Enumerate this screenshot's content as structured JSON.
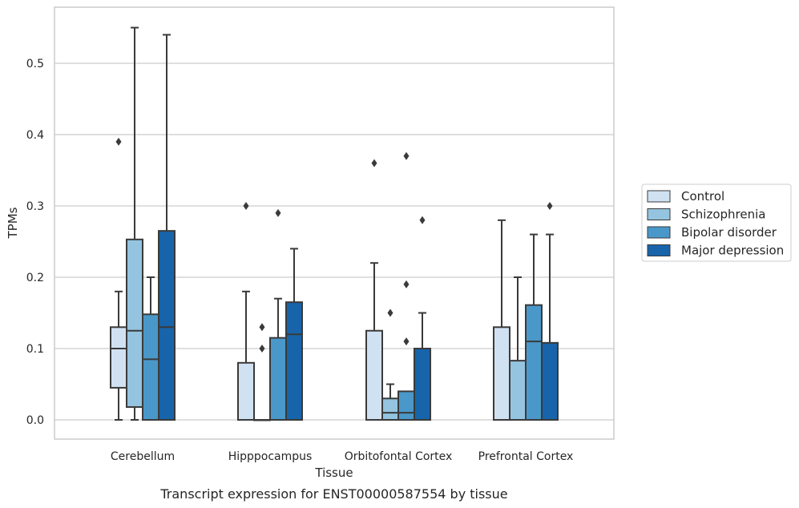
{
  "chart_data": {
    "type": "box",
    "title": "",
    "caption": "Transcript expression for ENST00000587554 by tissue",
    "xlabel": "Tissue",
    "ylabel": "TPMs",
    "ylim": [
      -0.027,
      0.58
    ],
    "yticks": [
      0.0,
      0.1,
      0.2,
      0.3,
      0.4,
      0.5
    ],
    "ytick_labels": [
      "0.0",
      "0.1",
      "0.2",
      "0.3",
      "0.4",
      "0.5"
    ],
    "grid": "horizontal",
    "legend_position": "right",
    "categories": [
      "Cerebellum",
      "Hipppocampus",
      "Orbitofontal Cortex",
      "Prefrontal Cortex"
    ],
    "series": [
      {
        "name": "Control",
        "color": "#d0e1f2",
        "boxes": [
          {
            "whislo": 0.0,
            "q1": 0.045,
            "med": 0.1,
            "q3": 0.13,
            "whishi": 0.18,
            "fliers": [
              0.39
            ]
          },
          {
            "whislo": 0.0,
            "q1": 0.0,
            "med": 0.0,
            "q3": 0.08,
            "whishi": 0.18,
            "fliers": [
              0.3
            ]
          },
          {
            "whislo": 0.0,
            "q1": 0.0,
            "med": 0.0,
            "q3": 0.125,
            "whishi": 0.22,
            "fliers": [
              0.36
            ]
          },
          {
            "whislo": 0.0,
            "q1": 0.0,
            "med": 0.0,
            "q3": 0.13,
            "whishi": 0.28,
            "fliers": []
          }
        ]
      },
      {
        "name": "Schizophrenia",
        "color": "#94c4df",
        "boxes": [
          {
            "whislo": 0.0,
            "q1": 0.018,
            "med": 0.125,
            "q3": 0.253,
            "whishi": 0.55,
            "fliers": []
          },
          {
            "whislo": 0.0,
            "q1": 0.0,
            "med": 0.0,
            "q3": 0.0,
            "whishi": 0.0,
            "fliers": [
              0.1,
              0.13
            ]
          },
          {
            "whislo": 0.0,
            "q1": 0.0,
            "med": 0.01,
            "q3": 0.03,
            "whishi": 0.05,
            "fliers": [
              0.15
            ]
          },
          {
            "whislo": 0.0,
            "q1": 0.0,
            "med": 0.0,
            "q3": 0.083,
            "whishi": 0.2,
            "fliers": []
          }
        ]
      },
      {
        "name": "Bipolar disorder",
        "color": "#4a98c9",
        "boxes": [
          {
            "whislo": 0.0,
            "q1": 0.0,
            "med": 0.085,
            "q3": 0.148,
            "whishi": 0.2,
            "fliers": []
          },
          {
            "whislo": 0.0,
            "q1": 0.0,
            "med": 0.0,
            "q3": 0.115,
            "whishi": 0.17,
            "fliers": [
              0.29
            ]
          },
          {
            "whislo": 0.0,
            "q1": 0.0,
            "med": 0.01,
            "q3": 0.04,
            "whishi": 0.04,
            "fliers": [
              0.11,
              0.19,
              0.37
            ]
          },
          {
            "whislo": 0.0,
            "q1": 0.0,
            "med": 0.11,
            "q3": 0.161,
            "whishi": 0.26,
            "fliers": []
          }
        ]
      },
      {
        "name": "Major depression",
        "color": "#1764ab",
        "boxes": [
          {
            "whislo": 0.0,
            "q1": 0.0,
            "med": 0.13,
            "q3": 0.265,
            "whishi": 0.54,
            "fliers": []
          },
          {
            "whislo": 0.0,
            "q1": 0.0,
            "med": 0.12,
            "q3": 0.165,
            "whishi": 0.24,
            "fliers": []
          },
          {
            "whislo": 0.0,
            "q1": 0.0,
            "med": 0.0,
            "q3": 0.1,
            "whishi": 0.15,
            "fliers": [
              0.28
            ]
          },
          {
            "whislo": 0.0,
            "q1": 0.0,
            "med": 0.0,
            "q3": 0.108,
            "whishi": 0.26,
            "fliers": [
              0.3
            ]
          }
        ]
      }
    ]
  }
}
